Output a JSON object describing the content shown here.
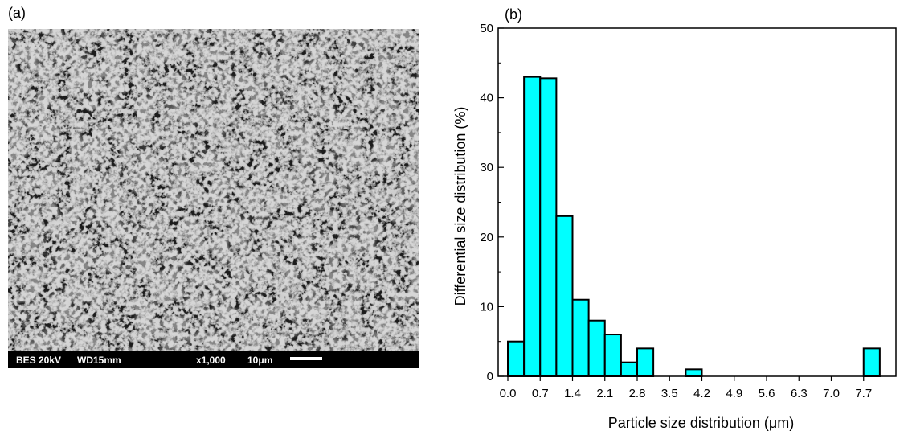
{
  "panels": {
    "a_label": "(a)",
    "b_label": "(b)"
  },
  "sem_image": {
    "scalebar": {
      "mode": "BES 20kV",
      "wd": "WD15mm",
      "mag": "x1,000",
      "scale": "10μm"
    },
    "colors": {
      "background": "#1a1a1a",
      "footer": "#000000",
      "text": "#ffffff"
    }
  },
  "chart_data": {
    "type": "bar",
    "xlabel": "Particle size distribution (μm)",
    "ylabel": "Differential size distribution (%)",
    "xlim": [
      0,
      8.4
    ],
    "ylim": [
      0,
      50
    ],
    "yticks": [
      0,
      10,
      20,
      30,
      40,
      50
    ],
    "xticks": [
      "0.0",
      "0.7",
      "1.4",
      "2.1",
      "2.8",
      "3.5",
      "4.2",
      "4.9",
      "5.6",
      "6.3",
      "7.0",
      "7.7"
    ],
    "bin_width": 0.35,
    "bins": [
      {
        "start": 0.0,
        "value": 5
      },
      {
        "start": 0.35,
        "value": 43
      },
      {
        "start": 0.7,
        "value": 42.8
      },
      {
        "start": 1.05,
        "value": 23
      },
      {
        "start": 1.4,
        "value": 11
      },
      {
        "start": 1.75,
        "value": 8
      },
      {
        "start": 2.1,
        "value": 6
      },
      {
        "start": 2.45,
        "value": 2
      },
      {
        "start": 2.8,
        "value": 4
      },
      {
        "start": 3.85,
        "value": 1
      },
      {
        "start": 7.7,
        "value": 4
      }
    ],
    "bar_color": "#00ffff",
    "edge_color": "#000000"
  }
}
